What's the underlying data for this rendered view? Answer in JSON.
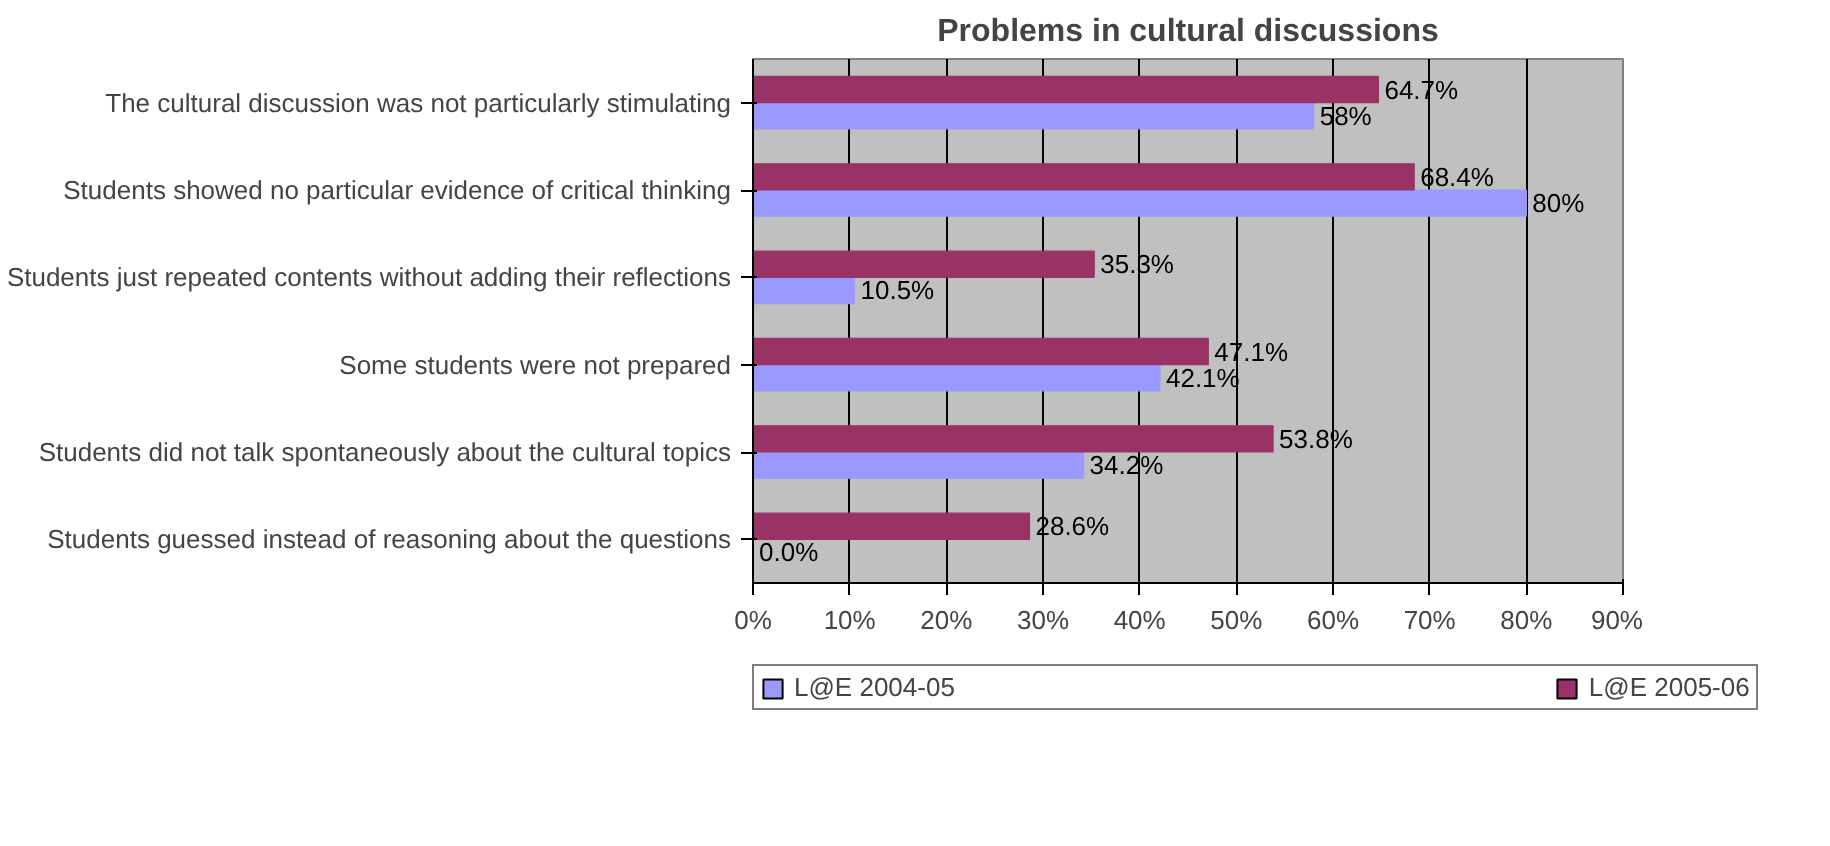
{
  "chart_data": {
    "type": "bar",
    "orientation": "horizontal",
    "title": "Problems in cultural discussions",
    "categories": [
      "The cultural discussion was not particularly stimulating",
      "Students showed no particular evidence of critical thinking",
      "Students just repeated contents without adding their reflections",
      "Some students were not prepared",
      "Students did not talk spontaneously about the cultural topics",
      "Students guessed instead of reasoning about the questions"
    ],
    "series": [
      {
        "name": "L@E 2004-05",
        "color": "#9999ff",
        "values": [
          58,
          80,
          10.5,
          42.1,
          34.2,
          0
        ],
        "value_labels": [
          "58%",
          "80%",
          "10.5%",
          "42.1%",
          "34.2%",
          "0.0%"
        ]
      },
      {
        "name": "L@E 2005-06",
        "color": "#993366",
        "values": [
          64.7,
          68.4,
          35.3,
          47.1,
          53.8,
          28.6
        ],
        "value_labels": [
          "64.7%",
          "68.4%",
          "35.3%",
          "47.1%",
          "53.8%",
          "28.6%"
        ]
      }
    ],
    "xlim": [
      0,
      90
    ],
    "xticks": [
      {
        "value": 0,
        "label": "0%"
      },
      {
        "value": 10,
        "label": "10%"
      },
      {
        "value": 20,
        "label": "20%"
      },
      {
        "value": 30,
        "label": "30%"
      },
      {
        "value": 40,
        "label": "40%"
      },
      {
        "value": 50,
        "label": "50%"
      },
      {
        "value": 60,
        "label": "60%"
      },
      {
        "value": 70,
        "label": "70%"
      },
      {
        "value": 80,
        "label": "80%"
      },
      {
        "value": 90,
        "label": "90%"
      }
    ],
    "grid": "x",
    "legend": "bottom"
  }
}
